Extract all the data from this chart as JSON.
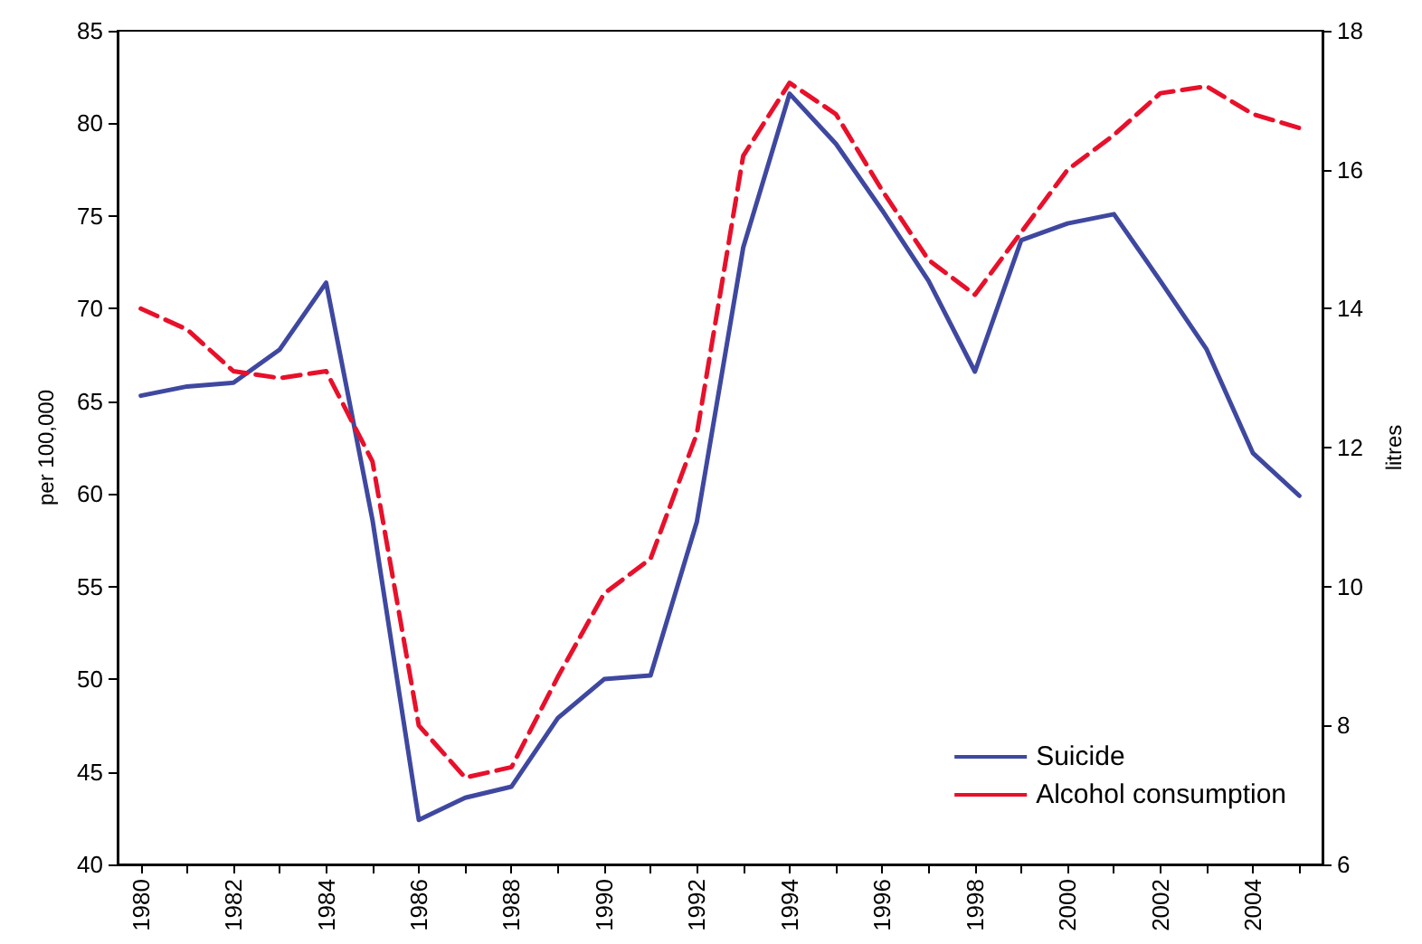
{
  "chart_data": {
    "type": "line",
    "categories": [
      "1980",
      null,
      "1982",
      null,
      "1984",
      null,
      "1986",
      null,
      "1988",
      null,
      "1990",
      null,
      "1992",
      null,
      "1994",
      null,
      "1996",
      null,
      "1998",
      null,
      "2000",
      null,
      "2002",
      null,
      "2004",
      null
    ],
    "series": [
      {
        "name": "Suicide",
        "color": "#3f48a0",
        "line_style": "solid",
        "values": [
          65.3,
          65.8,
          66.0,
          67.8,
          71.4,
          58.6,
          42.4,
          43.6,
          44.2,
          47.9,
          50.0,
          50.2,
          58.5,
          73.3,
          81.6,
          78.9,
          75.3,
          71.5,
          66.6,
          73.7,
          74.6,
          75.1,
          71.5,
          67.8,
          62.2,
          59.9
        ]
      },
      {
        "name": "Alcohol consumption",
        "color": "#e8102a",
        "line_style": "dashed",
        "axis": "y2",
        "values": [
          14.0,
          13.7,
          13.1,
          13.0,
          13.1,
          11.8,
          8.0,
          7.25,
          7.4,
          8.7,
          9.9,
          10.4,
          12.2,
          16.2,
          17.25,
          16.8,
          15.7,
          14.7,
          14.2,
          15.1,
          16.0,
          16.5,
          17.1,
          17.2,
          16.8,
          16.6
        ]
      }
    ],
    "ylabel": "per 100,000",
    "y2label": "litres",
    "ylim": [
      40,
      85
    ],
    "yticks": [
      40,
      45,
      50,
      55,
      60,
      65,
      70,
      75,
      80,
      85
    ],
    "y2lim": [
      6,
      18
    ],
    "y2ticks": [
      6,
      8,
      10,
      12,
      14,
      16,
      18
    ],
    "grid": false,
    "legend": "bottom right",
    "marker": "none"
  }
}
